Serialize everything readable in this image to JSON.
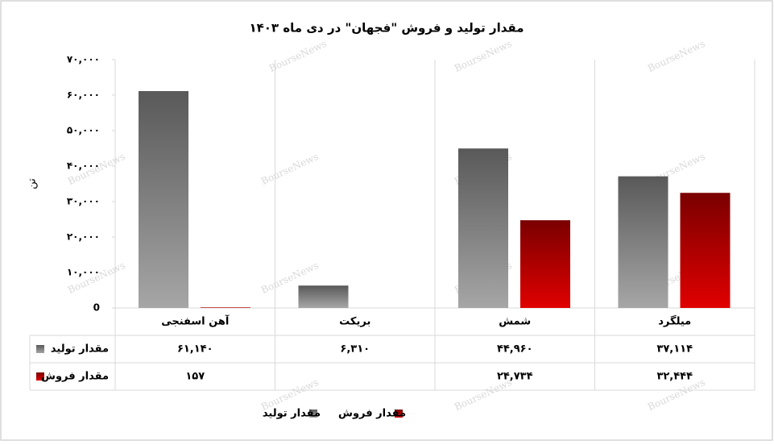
{
  "chart_data": {
    "type": "bar",
    "title": "مقدار تولید و فروش \"فجهان\" در دی ماه ۱۴۰۳",
    "y_label": "تن",
    "watermark": "BourseNews",
    "categories": [
      "آهن اسفنجی",
      "بریکت",
      "شمش",
      "میلگرد"
    ],
    "series": [
      {
        "name": "مقدار تولید",
        "color": "#7f7f7f",
        "values": [
          61140,
          6310,
          44960,
          37114
        ],
        "value_labels": [
          "۶۱,۱۴۰",
          "۶,۳۱۰",
          "۴۴,۹۶۰",
          "۳۷,۱۱۴"
        ]
      },
      {
        "name": "مقدار فروش",
        "color": "#c00000",
        "values": [
          157,
          null,
          24734,
          32444
        ],
        "value_labels": [
          "۱۵۷",
          null,
          "۲۴,۷۳۴",
          "۳۲,۴۴۴"
        ]
      }
    ],
    "ylim": [
      0,
      70000
    ],
    "yticks": [
      0,
      {
        "value": 10000,
        "label": "۱۰,۰۰۰"
      },
      {
        "value": 20000,
        "label": "۲۰,۰۰۰"
      },
      {
        "value": 30000,
        "label": "۳۰,۰۰۰"
      },
      {
        "value": 40000,
        "label": "۴۰,۰۰۰"
      },
      {
        "value": 50000,
        "label": "۵۰,۰۰۰"
      },
      {
        "value": 60000,
        "label": "۶۰,۰۰۰"
      },
      {
        "value": 70000,
        "label": "۷۰,۰۰۰"
      }
    ],
    "grid": false
  }
}
